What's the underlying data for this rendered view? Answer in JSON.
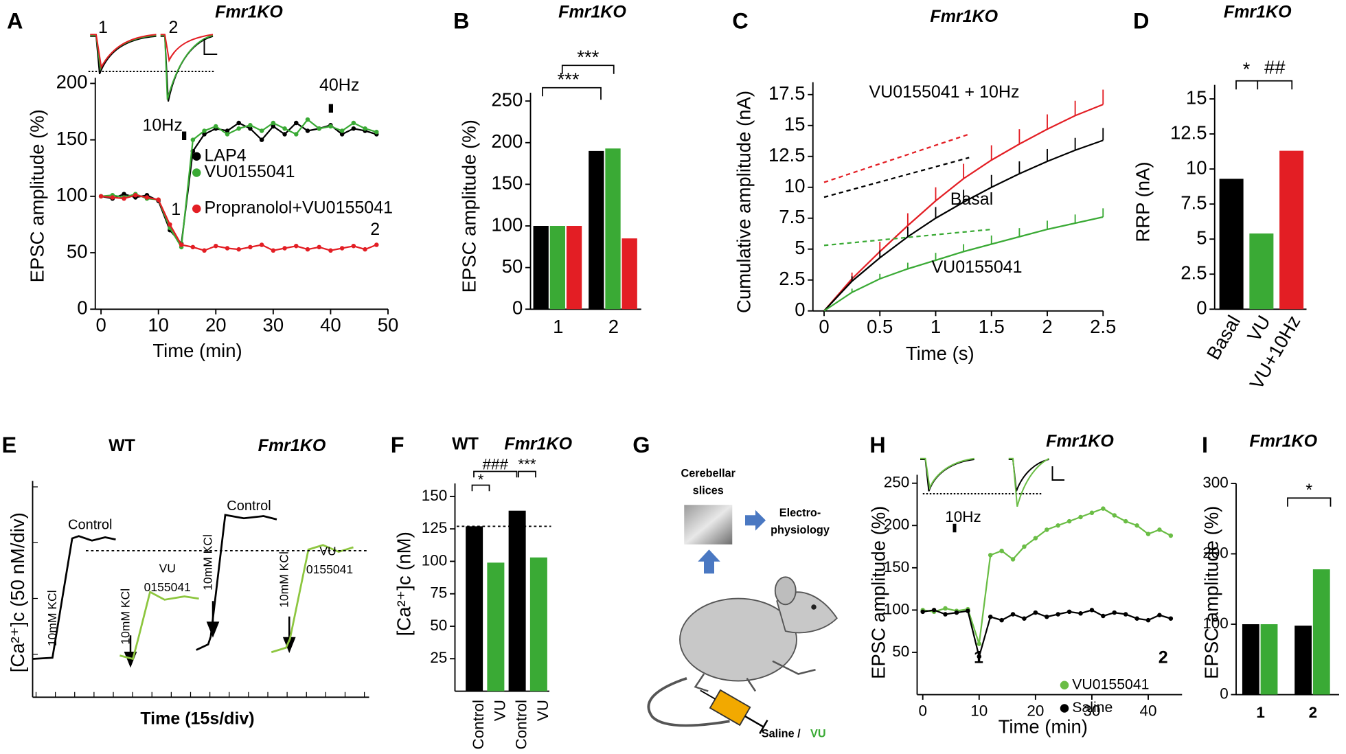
{
  "chart_data": [
    {
      "label": "A",
      "type": "line",
      "title": "Fmr1KO",
      "xlabel": "Time (min)",
      "ylabel": "EPSC amplitude (%)",
      "x": [
        0,
        2,
        4,
        6,
        8,
        10,
        12,
        14,
        16,
        18,
        20,
        22,
        24,
        26,
        28,
        30,
        32,
        34,
        36,
        38,
        40,
        42,
        44,
        46,
        48
      ],
      "series": [
        {
          "name": "LAP4",
          "color": "#000000",
          "values": [
            100,
            98,
            102,
            99,
            101,
            96,
            70,
            58,
            140,
            155,
            160,
            158,
            165,
            160,
            150,
            162,
            155,
            165,
            158,
            160,
            163,
            155,
            160,
            158,
            155
          ]
        },
        {
          "name": "VU0155041",
          "color": "#3aaa35",
          "values": [
            100,
            101,
            99,
            102,
            98,
            97,
            72,
            55,
            150,
            158,
            162,
            155,
            160,
            163,
            158,
            165,
            160,
            155,
            168,
            160,
            162,
            158,
            165,
            160,
            157
          ]
        },
        {
          "name": "Propranolol+VU0155041",
          "color": "#e31e24",
          "values": [
            100,
            99,
            98,
            101,
            99,
            97,
            75,
            57,
            55,
            52,
            56,
            54,
            53,
            55,
            57,
            52,
            54,
            56,
            53,
            55,
            52,
            54,
            56,
            53,
            57
          ]
        }
      ],
      "xlim": [
        -1,
        50
      ],
      "ylim": [
        0,
        205
      ],
      "xticks": [
        0,
        10,
        20,
        30,
        40,
        50
      ],
      "yticks": [
        0,
        50,
        100,
        150,
        200
      ],
      "markers": true,
      "legend": "center",
      "annotations": [
        "10Hz",
        "40Hz",
        "1",
        "2",
        "1",
        "2"
      ]
    },
    {
      "label": "B",
      "type": "bar",
      "title": "Fmr1KO",
      "ylabel": "EPSC amplitude (%)",
      "categories": [
        "1",
        "2"
      ],
      "series": [
        {
          "color": "#000000",
          "values": [
            100,
            190
          ]
        },
        {
          "color": "#3aaa35",
          "values": [
            100,
            193
          ]
        },
        {
          "color": "#e31e24",
          "values": [
            100,
            85
          ]
        }
      ],
      "ylim": [
        0,
        260
      ],
      "yticks": [
        0,
        50,
        100,
        150,
        200,
        250
      ],
      "annotations": [
        "***",
        "***"
      ]
    },
    {
      "label": "C",
      "type": "line",
      "title": "Fmr1KO",
      "xlabel": "Time (s)",
      "ylabel": "Cumulative amplitude  (nA)",
      "series": [
        {
          "name": "VU0155041 + 10Hz",
          "color": "#e31e24",
          "x": [
            0,
            0.25,
            0.5,
            0.75,
            1,
            1.25,
            1.5,
            1.75,
            2,
            2.25,
            2.5
          ],
          "values": [
            0,
            2.6,
            4.8,
            6.9,
            8.9,
            10.7,
            12.2,
            13.5,
            14.7,
            15.8,
            16.7
          ],
          "errors": [
            0,
            0.5,
            0.8,
            1,
            1.1,
            1.2,
            1.2,
            1.2,
            1.2,
            1.2,
            1.2
          ]
        },
        {
          "name": "Basal",
          "color": "#000000",
          "x": [
            0,
            0.25,
            0.5,
            0.75,
            1,
            1.25,
            1.5,
            1.75,
            2,
            2.25,
            2.5
          ],
          "values": [
            0,
            2.4,
            4.3,
            6,
            7.5,
            8.8,
            10,
            11.1,
            12.1,
            13,
            13.8
          ],
          "errors": [
            0,
            0.4,
            0.6,
            0.8,
            0.9,
            1,
            1,
            1,
            1,
            1,
            1
          ]
        },
        {
          "name": "VU0155041",
          "color": "#3aaa35",
          "x": [
            0,
            0.25,
            0.5,
            0.75,
            1,
            1.25,
            1.5,
            1.75,
            2,
            2.25,
            2.5
          ],
          "values": [
            0,
            1.5,
            2.6,
            3.4,
            4.1,
            4.8,
            5.4,
            6,
            6.6,
            7.1,
            7.6
          ],
          "errors": [
            0,
            0.3,
            0.4,
            0.5,
            0.6,
            0.6,
            0.7,
            0.7,
            0.7,
            0.7,
            0.7
          ]
        },
        {
          "color": "#e31e24",
          "line_style": "dashed",
          "x": [
            0,
            1.3
          ],
          "values": [
            10.4,
            14.3
          ]
        },
        {
          "color": "#000000",
          "line_style": "dashed",
          "x": [
            0,
            1.3
          ],
          "values": [
            9.2,
            12.4
          ]
        },
        {
          "color": "#3aaa35",
          "line_style": "dashed",
          "x": [
            0,
            1.5
          ],
          "values": [
            5.3,
            6.6
          ]
        }
      ],
      "xlim": [
        -0.1,
        2.5
      ],
      "ylim": [
        0,
        18.5
      ],
      "xticks": [
        0,
        0.5,
        1,
        1.5,
        2,
        2.5
      ],
      "yticks": [
        0,
        2.5,
        5,
        7.5,
        10,
        12.5,
        15,
        17.5
      ]
    },
    {
      "label": "D",
      "type": "bar",
      "title": "Fmr1KO",
      "ylabel": "RRP  (nA)",
      "categories": [
        "Basal",
        "VU",
        "VU+10Hz"
      ],
      "values": [
        9.3,
        5.4,
        11.3
      ],
      "colors": [
        "#000000",
        "#3aaa35",
        "#e31e24"
      ],
      "ylim": [
        0,
        16
      ],
      "yticks": [
        0,
        2.5,
        5,
        7.5,
        10,
        12.5,
        15
      ],
      "annotations": [
        "*",
        "##"
      ]
    },
    {
      "label": "E",
      "type": "trace",
      "xlabel": "Time (15s/div)",
      "ylabel": "[Ca²⁺]c (50 nM/div)",
      "group_labels": [
        "WT",
        "Fmr1KO"
      ],
      "series": [
        {
          "color": "#000000",
          "x": [
            0,
            15,
            16,
            30,
            35,
            45,
            55,
            63
          ],
          "values": [
            2,
            3,
            10,
            110,
            112,
            108,
            111,
            109
          ]
        },
        {
          "color": "#8dc63f",
          "x": [
            66,
            76,
            80,
            89,
            100,
            115,
            126
          ],
          "values": [
            5,
            2,
            20,
            62,
            55,
            58,
            56
          ]
        },
        {
          "color": "#000000",
          "x": [
            124,
            133,
            135,
            146,
            160,
            175,
            185
          ],
          "values": [
            10,
            15,
            22,
            131,
            128,
            130,
            127
          ]
        },
        {
          "color": "#8dc63f",
          "x": [
            181,
            192,
            195,
            209,
            220,
            232,
            243
          ],
          "values": [
            8,
            12,
            20,
            100,
            104,
            98,
            102
          ]
        }
      ],
      "xlim": [
        0,
        255
      ],
      "ylim": [
        0,
        160
      ],
      "reference_line": 99,
      "annotations": [
        "Control",
        "Control",
        "10mM KCl",
        "10mM KCl",
        "10mM KCl",
        "10mM KCl",
        "VU",
        "0155041",
        "VU",
        "0155041"
      ]
    },
    {
      "label": "F",
      "type": "bar",
      "ylabel": "[Ca²⁺]c (nM)",
      "group_labels": [
        "WT",
        "Fmr1KO"
      ],
      "categories": [
        "Control",
        "VU",
        "Control",
        "VU"
      ],
      "values": [
        127,
        99,
        139,
        103
      ],
      "colors": [
        "#000000",
        "#3aaa35",
        "#000000",
        "#3aaa35"
      ],
      "ylim": [
        0,
        160
      ],
      "yticks": [
        25,
        50,
        75,
        100,
        125,
        150
      ],
      "reference_line": 127,
      "annotations": [
        "*",
        "###",
        "***"
      ]
    },
    {
      "label": "H",
      "type": "line",
      "title": "Fmr1KO",
      "xlabel": "Time (min)",
      "ylabel": "EPSC amplitude (%)",
      "x": [
        0,
        2,
        4,
        6,
        8,
        10,
        12,
        14,
        16,
        18,
        20,
        22,
        24,
        26,
        28,
        30,
        32,
        34,
        36,
        38,
        40,
        42,
        44
      ],
      "series": [
        {
          "name": "VU0155041",
          "color": "#6abd45",
          "values": [
            100,
            98,
            102,
            99,
            101,
            60,
            165,
            170,
            160,
            175,
            185,
            195,
            200,
            205,
            210,
            215,
            220,
            212,
            205,
            200,
            190,
            195,
            188
          ]
        },
        {
          "name": "Saline",
          "color": "#000000",
          "values": [
            98,
            100,
            95,
            97,
            99,
            45,
            92,
            88,
            95,
            90,
            97,
            92,
            95,
            98,
            96,
            100,
            93,
            97,
            95,
            90,
            88,
            94,
            90
          ]
        }
      ],
      "xlim": [
        -1,
        46
      ],
      "ylim": [
        0,
        260
      ],
      "xticks": [
        0,
        10,
        20,
        30,
        40
      ],
      "yticks": [
        50,
        100,
        150,
        200,
        250
      ],
      "markers": true,
      "legend": "lower right",
      "annotations": [
        "10Hz",
        "1",
        "2"
      ]
    },
    {
      "label": "I",
      "type": "bar",
      "title": "Fmr1KO",
      "ylabel": "EPSC amplitude (%)",
      "categories": [
        "1",
        "2"
      ],
      "series": [
        {
          "color": "#000000",
          "values": [
            100,
            98
          ]
        },
        {
          "color": "#3aaa35",
          "values": [
            100,
            178
          ]
        }
      ],
      "ylim": [
        0,
        300
      ],
      "yticks": [
        0,
        100,
        200,
        300
      ],
      "annotations": [
        "*"
      ]
    }
  ],
  "diagram": {
    "label": "G",
    "slice_label": [
      "Cerebellar",
      "slices"
    ],
    "output_label": [
      "Electro-",
      "physiology"
    ],
    "injection_label": "Saline /",
    "injection_drug": "VU"
  }
}
